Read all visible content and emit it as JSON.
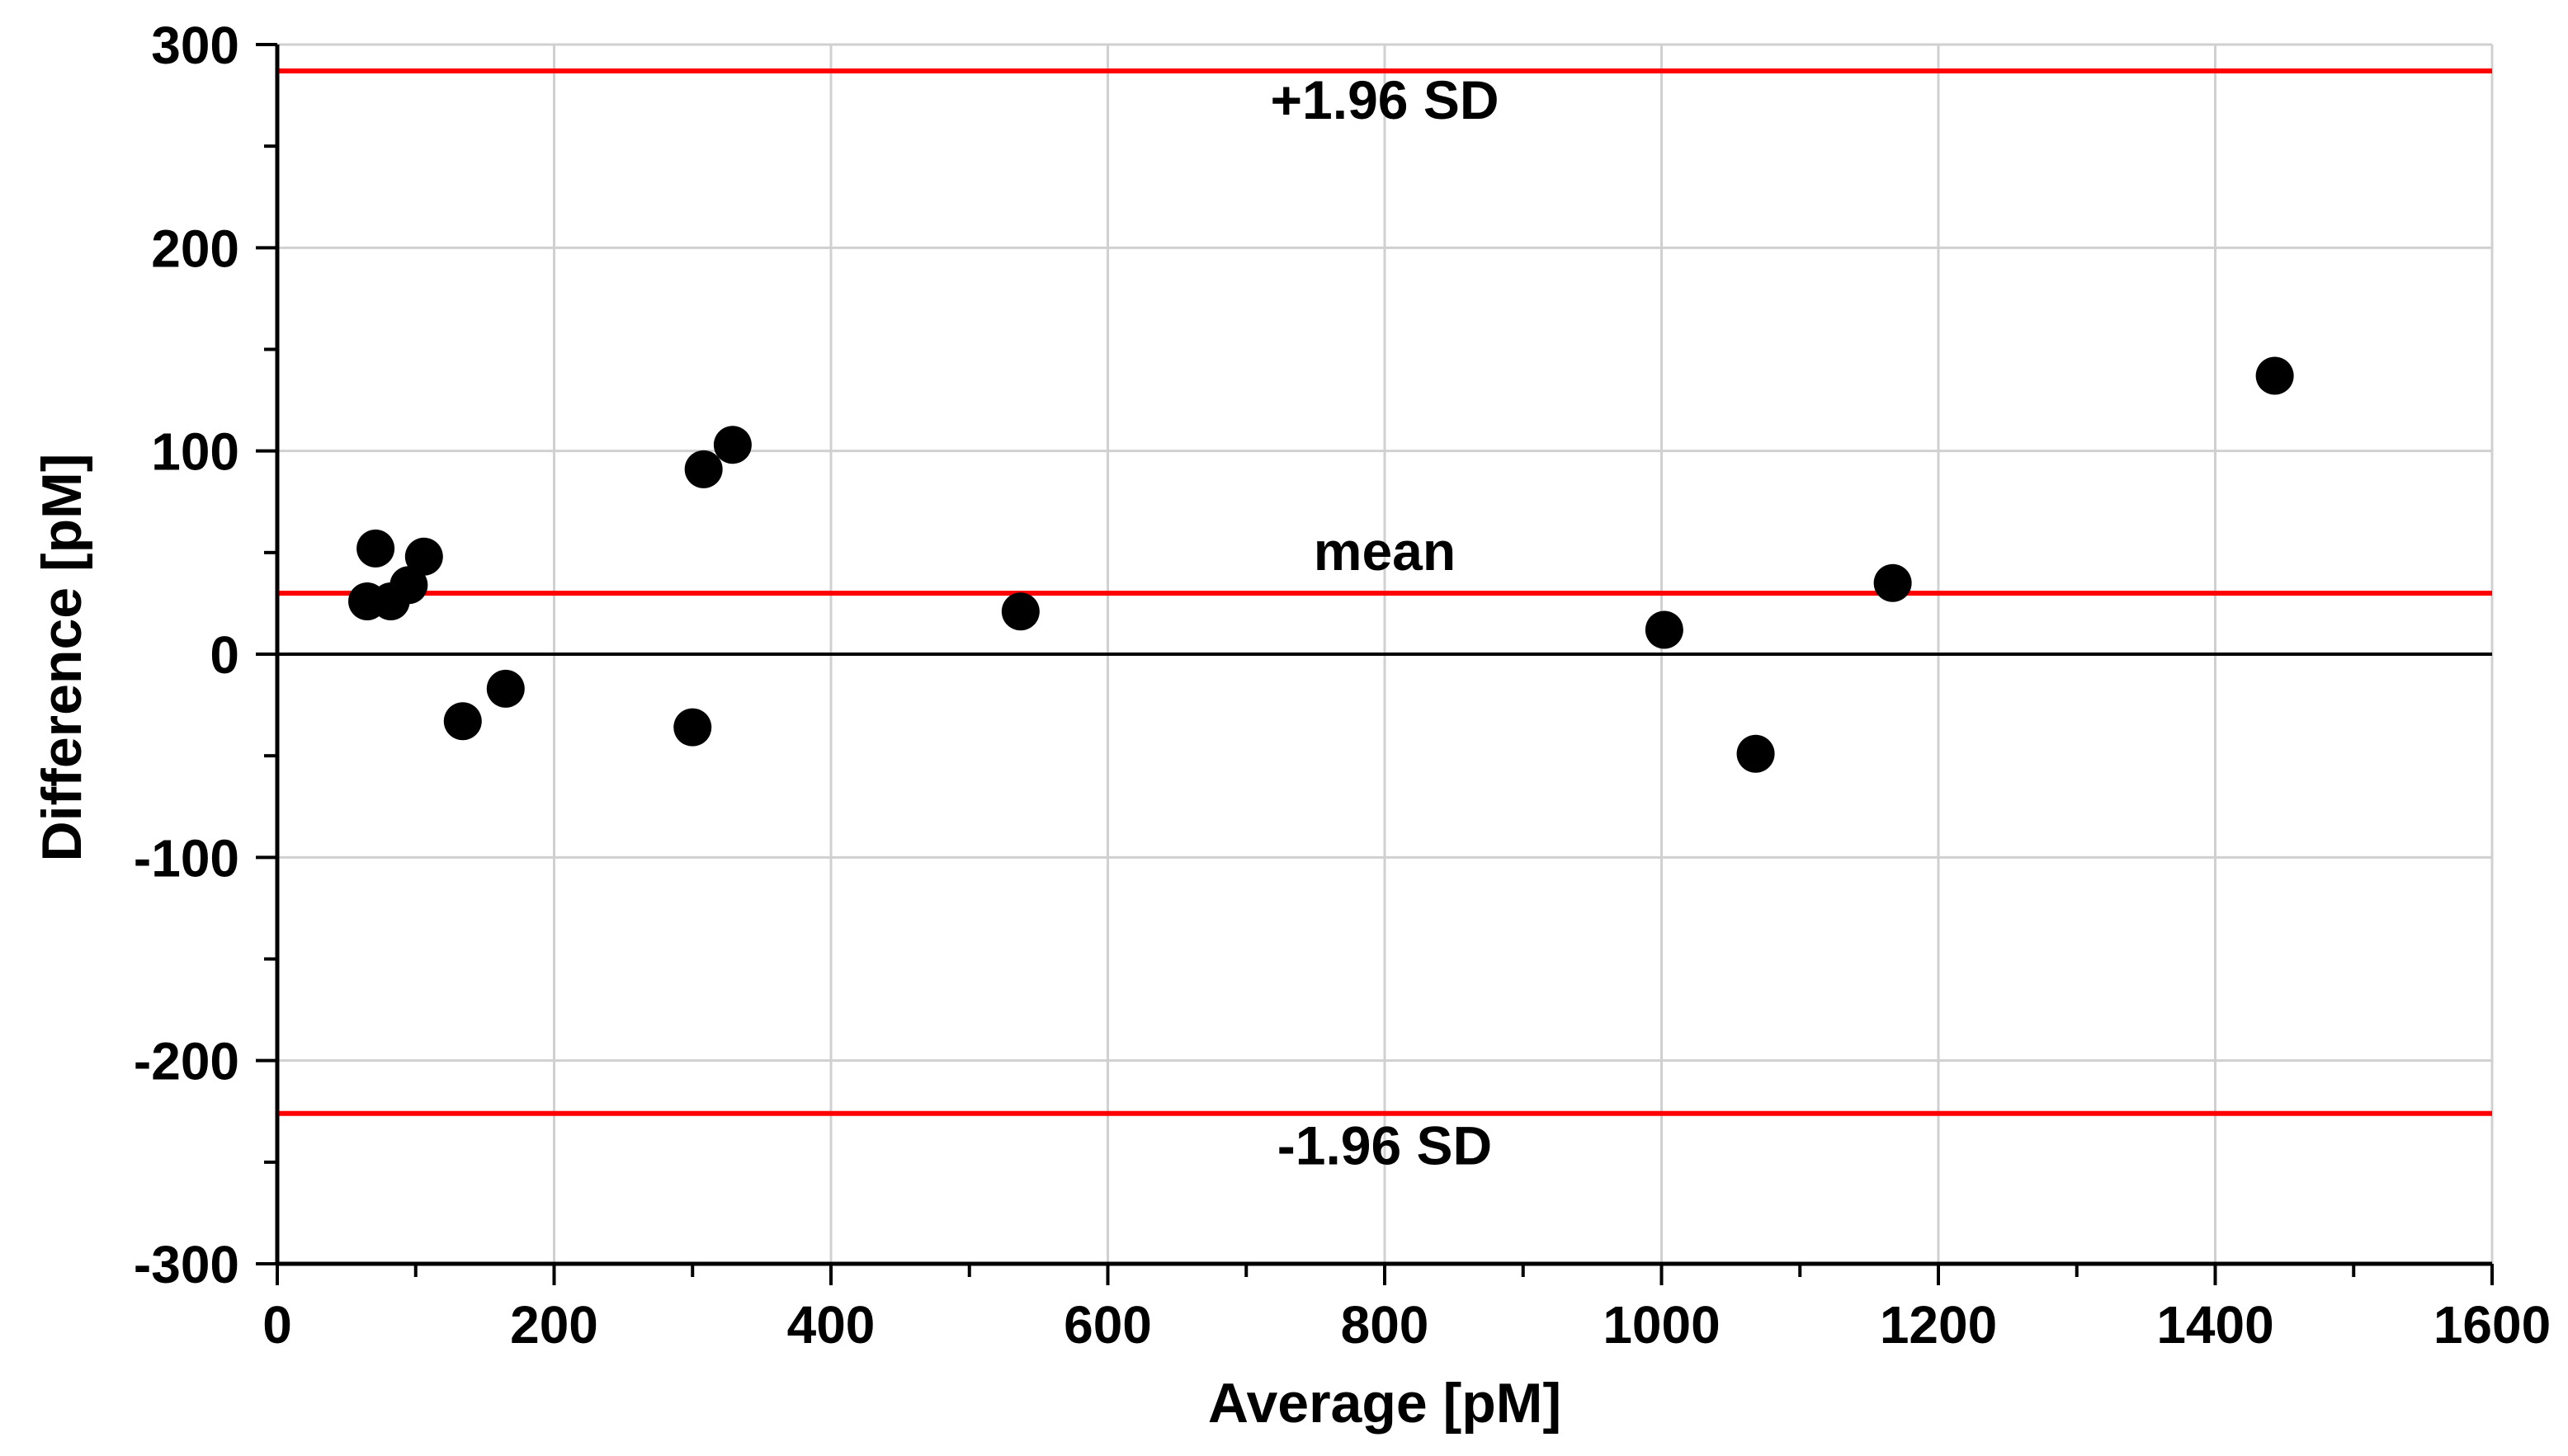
{
  "chart_data": {
    "type": "scatter",
    "title": "",
    "xlabel": "Average [pM]",
    "ylabel": "Difference [pM]",
    "xlim": [
      0,
      1600
    ],
    "ylim": [
      -300,
      300
    ],
    "x_ticks": [
      0,
      200,
      400,
      600,
      800,
      1000,
      1200,
      1400,
      1600
    ],
    "y_ticks": [
      300,
      200,
      100,
      0,
      -100,
      -200,
      -300
    ],
    "x_tick_labels": [
      "0",
      "200",
      "400",
      "600",
      "800",
      "1000",
      "1200",
      "1400",
      "1600"
    ],
    "y_tick_labels": [
      "300",
      "200",
      "100",
      "0",
      "-100",
      "-200",
      "-300"
    ],
    "grid": true,
    "colors": {
      "reference_lines": "#ff0000",
      "points": "#000000",
      "grid": "#d0d0d0",
      "zero_line": "#000000"
    },
    "reference_lines": [
      {
        "name": "upper-limit",
        "label": "+1.96 SD",
        "y": 287
      },
      {
        "name": "mean",
        "label": "mean",
        "y": 30
      },
      {
        "name": "lower-limit",
        "label": "-1.96 SD",
        "y": -226
      }
    ],
    "points": [
      {
        "x": 65,
        "y": 26
      },
      {
        "x": 71,
        "y": 52
      },
      {
        "x": 82,
        "y": 26
      },
      {
        "x": 95,
        "y": 34
      },
      {
        "x": 106,
        "y": 48
      },
      {
        "x": 134,
        "y": -33
      },
      {
        "x": 165,
        "y": -17
      },
      {
        "x": 300,
        "y": -36
      },
      {
        "x": 308,
        "y": 91
      },
      {
        "x": 329,
        "y": 103
      },
      {
        "x": 537,
        "y": 21
      },
      {
        "x": 1002,
        "y": 12
      },
      {
        "x": 1068,
        "y": -49
      },
      {
        "x": 1167,
        "y": 35
      },
      {
        "x": 1443,
        "y": 137
      }
    ]
  }
}
